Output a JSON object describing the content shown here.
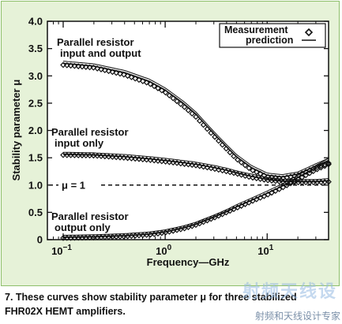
{
  "chart_data": {
    "type": "line",
    "x_scale": "log",
    "xlim": [
      0.07,
      40
    ],
    "ylim": [
      0,
      4.0
    ],
    "xlabel": "Frequency—GHz",
    "ylabel": "Stability parameter μ",
    "x_ticks": [
      {
        "value": 0.1,
        "base": "10",
        "exp": "−1"
      },
      {
        "value": 1,
        "base": "10",
        "exp": "0"
      },
      {
        "value": 10,
        "base": "10",
        "exp": "1"
      }
    ],
    "y_ticks": [
      {
        "value": 0,
        "label": "0"
      },
      {
        "value": 0.5,
        "label": "0.5"
      },
      {
        "value": 1.0,
        "label": "1.0"
      },
      {
        "value": 1.5,
        "label": "1.5"
      },
      {
        "value": 2.0,
        "label": "2.0"
      },
      {
        "value": 2.5,
        "label": "2.5"
      },
      {
        "value": 3.0,
        "label": "3.0"
      },
      {
        "value": 3.5,
        "label": "3.5"
      },
      {
        "value": 4.0,
        "label": "4.0"
      }
    ],
    "legend": {
      "position": "top-right",
      "entries": [
        {
          "label": "Measurement",
          "marker": "diamond"
        },
        {
          "label": "prediction",
          "marker": "line"
        }
      ]
    },
    "reference_line": {
      "y": 1.0,
      "label": "μ = 1",
      "style": "dashed"
    },
    "series": [
      {
        "annotation": [
          "Parallel resistor",
          "input and output"
        ],
        "x": [
          0.1,
          0.2,
          0.4,
          0.7,
          1,
          1.5,
          2,
          3,
          4,
          5,
          7,
          10,
          14,
          20,
          30,
          40
        ],
        "measured": [
          3.2,
          3.15,
          3.02,
          2.86,
          2.7,
          2.45,
          2.25,
          1.9,
          1.66,
          1.48,
          1.28,
          1.15,
          1.12,
          1.18,
          1.32,
          1.4
        ],
        "predicted": [
          3.23,
          3.18,
          3.06,
          2.9,
          2.74,
          2.5,
          2.3,
          1.94,
          1.7,
          1.52,
          1.32,
          1.18,
          1.15,
          1.2,
          1.35,
          1.45
        ]
      },
      {
        "annotation": [
          "Parallel resistor",
          "input only"
        ],
        "x": [
          0.1,
          0.2,
          0.4,
          0.7,
          1,
          1.5,
          2,
          3,
          4,
          5,
          7,
          10,
          14,
          20,
          30,
          40
        ],
        "measured": [
          1.55,
          1.54,
          1.5,
          1.46,
          1.43,
          1.39,
          1.36,
          1.3,
          1.25,
          1.21,
          1.14,
          1.09,
          1.06,
          1.05,
          1.05,
          1.06
        ],
        "predicted": [
          1.56,
          1.55,
          1.52,
          1.48,
          1.45,
          1.41,
          1.38,
          1.32,
          1.27,
          1.22,
          1.16,
          1.1,
          1.07,
          1.06,
          1.06,
          1.08
        ]
      },
      {
        "annotation": [
          "Parallel resistor",
          "output only"
        ],
        "x": [
          0.1,
          0.2,
          0.4,
          0.7,
          1,
          1.5,
          2,
          3,
          4,
          5,
          7,
          10,
          14,
          20,
          30,
          40
        ],
        "measured": [
          0.03,
          0.04,
          0.06,
          0.09,
          0.13,
          0.2,
          0.27,
          0.4,
          0.5,
          0.58,
          0.7,
          0.82,
          0.95,
          1.1,
          1.28,
          1.38
        ],
        "predicted": [
          0.04,
          0.05,
          0.07,
          0.1,
          0.14,
          0.21,
          0.28,
          0.41,
          0.51,
          0.6,
          0.72,
          0.85,
          0.98,
          1.14,
          1.32,
          1.45
        ]
      }
    ]
  },
  "caption": {
    "lines": [
      "7. These curves show stability parameter μ for three stabilized",
      "FHR02X HEMT amplifiers."
    ]
  },
  "watermark": {
    "logo": "射频天线设",
    "subtitle": "射频和天线设计专家"
  },
  "colors": {
    "panel_bg": "#e6f2d8",
    "panel_border": "#8dbf6a",
    "ink": "#111111"
  }
}
